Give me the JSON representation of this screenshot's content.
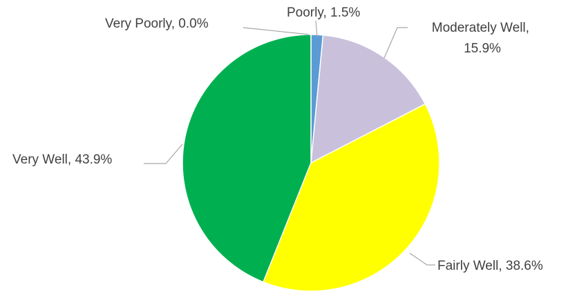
{
  "chart_data": {
    "type": "pie",
    "title": "",
    "slices": [
      {
        "label": "Very Poorly",
        "value": 0.0,
        "display": "Very Poorly, 0.0%",
        "color": "#4472c4"
      },
      {
        "label": "Poorly",
        "value": 1.5,
        "display": "Poorly, 1.5%",
        "color": "#5b9bd5"
      },
      {
        "label": "Moderately Well",
        "value": 15.9,
        "display_lines": [
          "Moderately Well,",
          "15.9%"
        ],
        "color": "#c9c0dc"
      },
      {
        "label": "Fairly Well",
        "value": 38.6,
        "display": "Fairly Well, 38.6%",
        "color": "#ffff00"
      },
      {
        "label": "Very Well",
        "value": 43.9,
        "display": "Very Well, 43.9%",
        "color": "#00b050"
      }
    ]
  }
}
